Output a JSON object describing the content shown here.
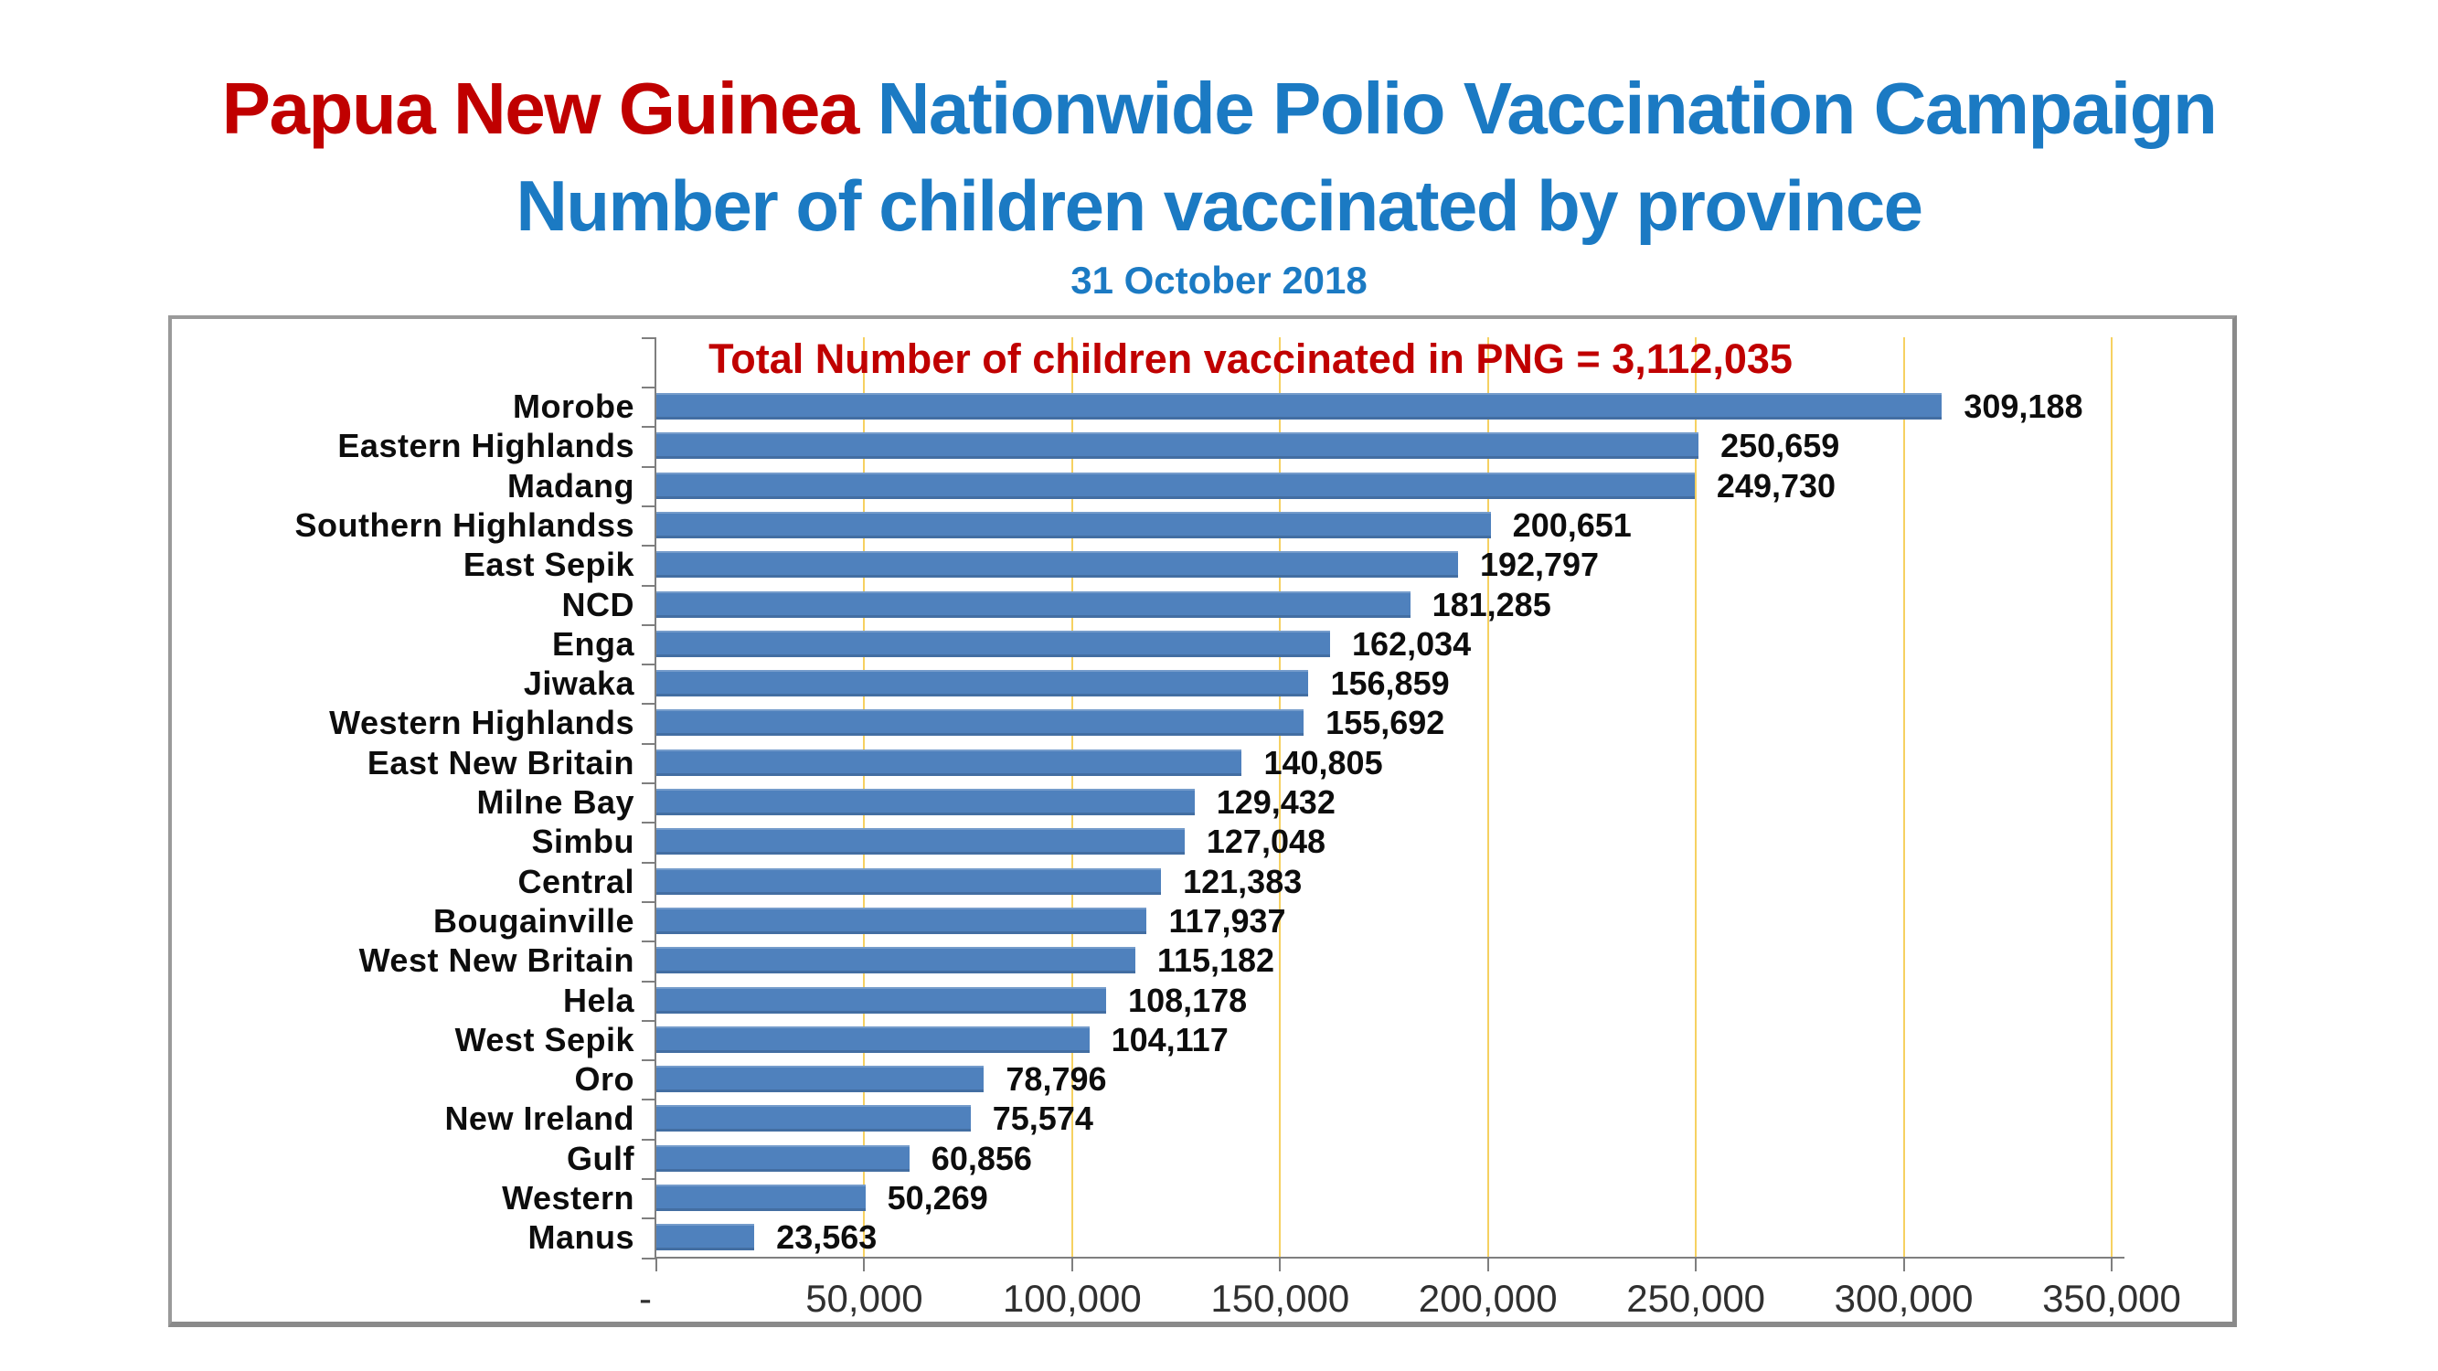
{
  "title": {
    "line1_red": "Papua New Guinea ",
    "line1_blue": "Nationwide Polio Vaccination Campaign",
    "line2": "Number of children vaccinated by province",
    "date": "31 October 2018"
  },
  "colors": {
    "title_red": "#c00000",
    "title_blue": "#1b7ac3",
    "bar_blue": "#4f81bd",
    "gridline_gold": "#f6d161",
    "axis_gray": "#7f7f7f",
    "chart_border_gray": "#9a9a9a"
  },
  "chart_data": {
    "type": "bar",
    "orientation": "horizontal",
    "title": "Total Number of children vaccinated in PNG = 3,112,035",
    "total": 3112035,
    "categories": [
      "Morobe",
      "Eastern Highlands",
      "Madang",
      "Southern Highlandss",
      "East Sepik",
      "NCD",
      "Enga",
      "Jiwaka",
      "Western Highlands",
      "East New Britain",
      "Milne Bay",
      "Simbu",
      "Central",
      "Bougainville",
      "West New Britain",
      "Hela",
      "West Sepik",
      "Oro",
      "New Ireland",
      "Gulf",
      "Western",
      "Manus"
    ],
    "values": [
      309188,
      250659,
      249730,
      200651,
      192797,
      181285,
      162034,
      156859,
      155692,
      140805,
      129432,
      127048,
      121383,
      117937,
      115182,
      108178,
      104117,
      78796,
      75574,
      60856,
      50269,
      23563
    ],
    "value_labels": [
      "309,188",
      "250,659",
      "249,730",
      "200,651",
      "192,797",
      "181,285",
      "162,034",
      "156,859",
      "155,692",
      "140,805",
      "129,432",
      "127,048",
      "121,383",
      "117,937",
      "115,182",
      "108,178",
      "104,117",
      "78,796",
      "75,574",
      "60,856",
      "50,269",
      "23,563"
    ],
    "x_tick_labels": [
      "-",
      "50,000",
      "100,000",
      "150,000",
      "200,000",
      "250,000",
      "300,000",
      "350,000"
    ],
    "xlim": [
      0,
      350000
    ],
    "grid": true,
    "legend": false
  }
}
